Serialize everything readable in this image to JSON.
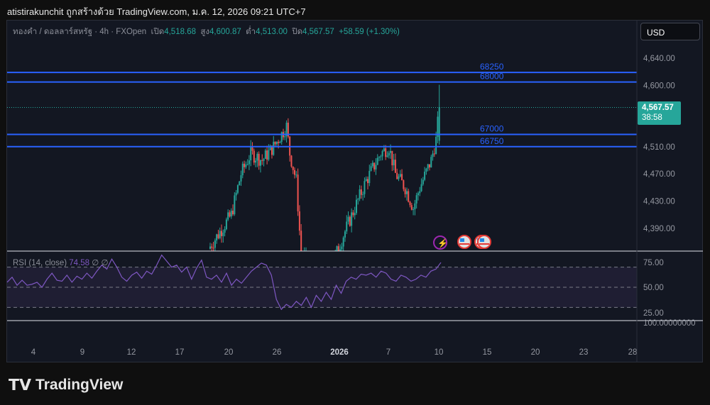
{
  "header": {
    "title": "atistirakunchit ถูกสร้างด้วย TradingView.com, ม.ค. 12, 2026 09:21 UTC+7"
  },
  "legend": {
    "symbol": "ทองคำ / ดอลลาร์สหรัฐ · 4h · FXOpen",
    "open_label": "เปิด",
    "open": "4,518.68",
    "high_label": "สูง",
    "high": "4,600.87",
    "low_label": "ต่ำ",
    "low": "4,513.00",
    "close_label": "ปิด",
    "close": "4,567.57",
    "change": "+58.59 (+1.30%)"
  },
  "currency_button": "USD",
  "price_axis": {
    "ticks": [
      4640,
      4600,
      4510,
      4470,
      4430,
      4390
    ],
    "tick_labels": [
      "4,640.00",
      "4,600.00",
      "4,510.00",
      "4,470.00",
      "4,430.00",
      "4,390.00"
    ],
    "current_price": "4,567.57",
    "countdown": "38:58"
  },
  "horizontal_lines": [
    {
      "label": "68250",
      "price": 4619
    },
    {
      "label": "68000",
      "price": 4605
    },
    {
      "label": "67000",
      "price": 4528
    },
    {
      "label": "66750",
      "price": 4510
    }
  ],
  "candle_path": [
    [
      0,
      4360
    ],
    [
      14,
      4410
    ],
    [
      20,
      4470
    ],
    [
      26,
      4500
    ],
    [
      33,
      4490
    ],
    [
      40,
      4510
    ],
    [
      48,
      4540
    ],
    [
      50,
      4500
    ],
    [
      54,
      4460
    ],
    [
      57,
      4350
    ],
    [
      63,
      4340
    ],
    [
      75,
      4330
    ],
    [
      83,
      4380
    ],
    [
      90,
      4420
    ],
    [
      97,
      4460
    ],
    [
      106,
      4500
    ],
    [
      111,
      4510
    ],
    [
      115,
      4470
    ],
    [
      121,
      4450
    ],
    [
      126,
      4420
    ],
    [
      130,
      4450
    ],
    [
      137,
      4490
    ],
    [
      140,
      4520
    ],
    [
      142,
      4567.57
    ]
  ],
  "events": [
    "lightning-event",
    "us-flag-event",
    "us-flag-event"
  ],
  "rsi": {
    "label": "RSI (14, close)",
    "value": "74.58",
    "extra": "∅ ∅",
    "axis_labels": [
      "75.00",
      "50.00",
      "25.00"
    ],
    "overflow_label": "100.00000000",
    "values": [
      55,
      60,
      52,
      57,
      52,
      53,
      55,
      50,
      58,
      64,
      57,
      56,
      62,
      55,
      61,
      58,
      64,
      59,
      66,
      72,
      68,
      78,
      70,
      60,
      56,
      62,
      65,
      59,
      66,
      63,
      72,
      82,
      76,
      70,
      72,
      65,
      70,
      58,
      69,
      77,
      60,
      58,
      62,
      55,
      64,
      52,
      58,
      54,
      60,
      66,
      70,
      74,
      72,
      62,
      38,
      28,
      33,
      30,
      36,
      32,
      40,
      30,
      42,
      36,
      45,
      38,
      52,
      44,
      56,
      60,
      58,
      63,
      62,
      64,
      60,
      66,
      64,
      58,
      56,
      62,
      60,
      56,
      58,
      62,
      60,
      66,
      68,
      74.6
    ]
  },
  "time_axis": [
    "4",
    "9",
    "12",
    "17",
    "20",
    "26",
    "2026",
    "7",
    "10",
    "15",
    "20",
    "23",
    "28"
  ],
  "brand": "TradingView",
  "colors": {
    "up": "#26a69a",
    "down": "#ef5350",
    "hline": "#2962ff",
    "rsi": "#7e57c2"
  }
}
